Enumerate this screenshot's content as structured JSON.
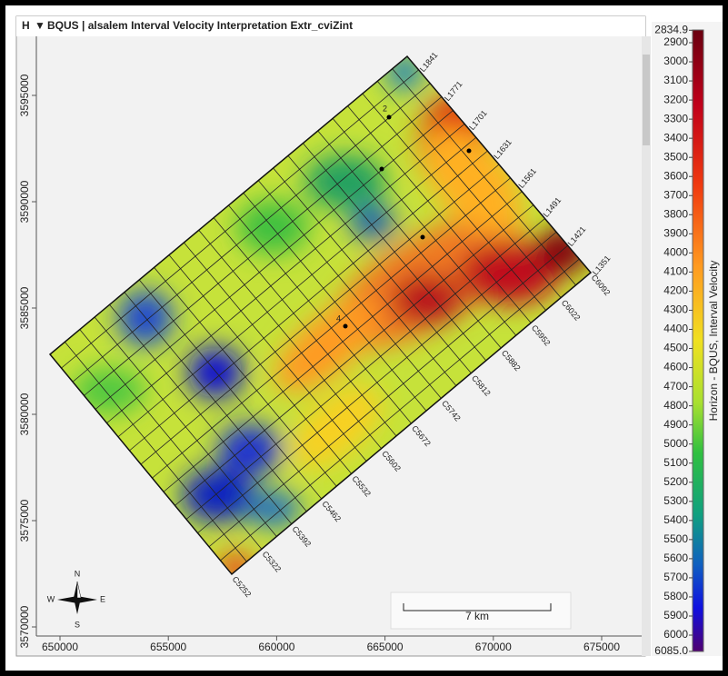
{
  "title_bar": {
    "icon": "H",
    "title": "BQUS | alsalem  Interval Velocity Interpretation Extr_cviZint"
  },
  "map": {
    "x_ticks": [
      650000,
      655000,
      660000,
      665000,
      670000,
      675000
    ],
    "y_ticks": [
      3570000,
      3575000,
      3580000,
      3585000,
      3590000,
      3595000
    ],
    "inline_labels": [
      "L1841",
      "L1771",
      "L1701",
      "L1631",
      "L1561",
      "L1491",
      "L1421",
      "L1351"
    ],
    "crossline_labels": [
      "C5252",
      "C5322",
      "C5392",
      "C5462",
      "C5532",
      "C5602",
      "C5672",
      "C5742",
      "C5812",
      "C5882",
      "C5952",
      "C6022",
      "C6092"
    ],
    "well_labels": [
      "2",
      "4"
    ],
    "scale_bar": "7 km",
    "compass": {
      "n": "N",
      "s": "S",
      "e": "E",
      "w": "W"
    }
  },
  "colorbar": {
    "label": "Horizon - BQUS, Interval Velocity",
    "ticks": [
      2834.9,
      2900,
      3000,
      3100,
      3200,
      3300,
      3400,
      3500,
      3600,
      3700,
      3800,
      3900,
      4000,
      4100,
      4200,
      4300,
      4400,
      4500,
      4600,
      4700,
      4800,
      4900,
      5000,
      5100,
      5200,
      5300,
      5400,
      5500,
      5600,
      5700,
      5800,
      5900,
      6000,
      {
        "value": 6085,
        "label": "6085.0"
      }
    ]
  }
}
